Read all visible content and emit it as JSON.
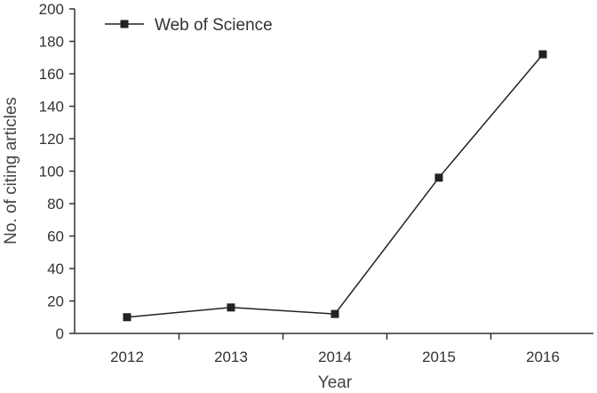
{
  "chart_data": {
    "type": "line",
    "title": "",
    "xlabel": "Year",
    "ylabel": "No. of citing articles",
    "categories": [
      "2012",
      "2013",
      "2014",
      "2015",
      "2016"
    ],
    "yticks": [
      "0",
      "20",
      "40",
      "60",
      "80",
      "100",
      "120",
      "140",
      "160",
      "180",
      "200"
    ],
    "ylim": [
      0,
      200
    ],
    "grid": false,
    "legend_position": "top-left",
    "series": [
      {
        "name": "Web of Science",
        "marker": "square",
        "color": "#222222",
        "values": [
          10,
          16,
          12,
          96,
          172
        ]
      }
    ]
  }
}
